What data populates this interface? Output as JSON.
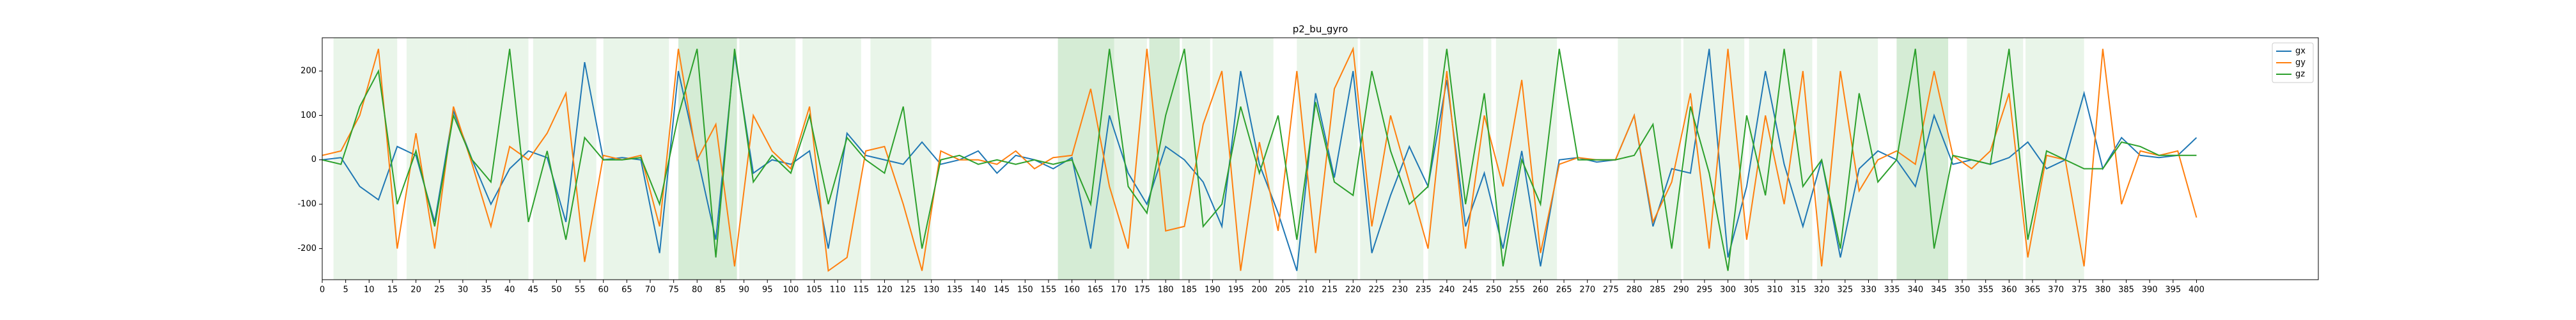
{
  "chart_data": {
    "type": "line",
    "title": "p2_bu_gyro",
    "x": [
      0,
      4,
      8,
      12,
      16,
      20,
      24,
      28,
      32,
      36,
      40,
      44,
      48,
      52,
      56,
      60,
      64,
      68,
      72,
      76,
      80,
      84,
      88,
      92,
      96,
      100,
      104,
      108,
      112,
      116,
      120,
      124,
      128,
      132,
      136,
      140,
      144,
      148,
      152,
      156,
      160,
      164,
      168,
      172,
      176,
      180,
      184,
      188,
      192,
      196,
      200,
      204,
      208,
      212,
      216,
      220,
      224,
      228,
      232,
      236,
      240,
      244,
      248,
      252,
      256,
      260,
      264,
      268,
      272,
      276,
      280,
      284,
      288,
      292,
      296,
      300,
      304,
      308,
      312,
      316,
      320,
      324,
      328,
      332,
      336,
      340,
      344,
      348,
      352,
      356,
      360,
      364,
      368,
      372,
      376,
      380,
      384,
      388,
      392,
      396,
      400
    ],
    "series": [
      {
        "name": "gx",
        "color": "#1f77b4",
        "values": [
          0,
          5,
          -60,
          -90,
          30,
          10,
          -140,
          110,
          0,
          -100,
          -20,
          20,
          5,
          -140,
          220,
          0,
          5,
          0,
          -210,
          200,
          10,
          -180,
          240,
          -30,
          0,
          -10,
          20,
          -200,
          60,
          10,
          0,
          -10,
          40,
          -10,
          0,
          20,
          -30,
          10,
          0,
          -20,
          5,
          -200,
          100,
          -30,
          -100,
          30,
          0,
          -50,
          -150,
          200,
          -10,
          -120,
          -250,
          150,
          -40,
          200,
          -210,
          -80,
          30,
          -60,
          180,
          -150,
          -30,
          -200,
          20,
          -240,
          0,
          5,
          -5,
          0,
          100,
          -150,
          -20,
          -30,
          250,
          -220,
          -60,
          200,
          -10,
          -150,
          0,
          -220,
          -20,
          20,
          0,
          -60,
          100,
          -10,
          0,
          -10,
          5,
          40,
          -20,
          0,
          150,
          -20,
          50,
          10,
          5,
          10,
          50
        ]
      },
      {
        "name": "gy",
        "color": "#ff7f0e",
        "values": [
          10,
          20,
          100,
          250,
          -200,
          60,
          -200,
          120,
          -10,
          -150,
          30,
          0,
          60,
          150,
          -230,
          10,
          0,
          10,
          -150,
          250,
          0,
          80,
          -240,
          100,
          20,
          -20,
          120,
          -250,
          -220,
          20,
          30,
          -100,
          -250,
          20,
          0,
          0,
          -10,
          20,
          -20,
          5,
          10,
          160,
          -60,
          -200,
          250,
          -160,
          -150,
          80,
          200,
          -250,
          40,
          -160,
          200,
          -210,
          160,
          250,
          -150,
          100,
          -50,
          -200,
          200,
          -200,
          100,
          -60,
          180,
          -210,
          -10,
          5,
          0,
          0,
          100,
          -140,
          -50,
          150,
          -200,
          250,
          -180,
          100,
          -100,
          200,
          -240,
          200,
          -70,
          0,
          20,
          -10,
          200,
          10,
          -20,
          20,
          150,
          -220,
          10,
          0,
          -240,
          250,
          -100,
          20,
          10,
          20,
          -130
        ]
      },
      {
        "name": "gz",
        "color": "#2ca02c",
        "values": [
          0,
          -10,
          120,
          200,
          -100,
          20,
          -150,
          100,
          0,
          -50,
          250,
          -140,
          20,
          -180,
          50,
          0,
          0,
          5,
          -100,
          100,
          250,
          -220,
          250,
          -50,
          10,
          -30,
          100,
          -100,
          50,
          0,
          -30,
          120,
          -200,
          0,
          10,
          -10,
          0,
          -10,
          0,
          -10,
          0,
          -100,
          250,
          -60,
          -120,
          100,
          250,
          -150,
          -100,
          120,
          -30,
          100,
          -180,
          130,
          -50,
          -80,
          200,
          20,
          -100,
          -60,
          250,
          -100,
          150,
          -240,
          0,
          -100,
          250,
          0,
          0,
          0,
          10,
          80,
          -200,
          120,
          -30,
          -250,
          100,
          -80,
          250,
          -60,
          0,
          -200,
          150,
          -50,
          0,
          250,
          -200,
          10,
          0,
          -10,
          250,
          -180,
          20,
          0,
          -20,
          -20,
          40,
          30,
          10,
          10,
          10
        ]
      }
    ],
    "spans": [
      [
        2.4,
        16
      ],
      [
        18,
        31
      ],
      [
        31,
        44
      ],
      [
        45,
        58.5
      ],
      [
        60,
        74
      ],
      [
        76,
        88.5
      ],
      [
        76,
        88.5
      ],
      [
        89,
        101
      ],
      [
        102.5,
        115
      ],
      [
        117,
        130
      ],
      [
        157,
        169
      ],
      [
        157,
        169
      ],
      [
        169,
        176
      ],
      [
        176.5,
        183
      ],
      [
        176.5,
        183
      ],
      [
        183.5,
        189.5
      ],
      [
        190,
        203
      ],
      [
        208,
        221
      ],
      [
        221.5,
        235
      ],
      [
        236,
        249.5
      ],
      [
        250.5,
        263.5
      ],
      [
        276.5,
        290
      ],
      [
        290.5,
        303.5
      ],
      [
        304.5,
        318
      ],
      [
        319,
        332
      ],
      [
        336,
        347
      ],
      [
        336,
        347
      ],
      [
        351,
        363
      ],
      [
        363.5,
        376
      ]
    ],
    "span_color": "#2ca02c",
    "xlim": [
      0,
      426
    ],
    "ylim": [
      -270,
      275
    ],
    "xticks": [
      0,
      5,
      10,
      15,
      20,
      25,
      30,
      35,
      40,
      45,
      50,
      55,
      60,
      65,
      70,
      75,
      80,
      85,
      90,
      95,
      100,
      105,
      110,
      115,
      120,
      125,
      130,
      135,
      140,
      145,
      150,
      155,
      160,
      165,
      170,
      175,
      180,
      185,
      190,
      195,
      200,
      205,
      210,
      215,
      220,
      225,
      230,
      235,
      240,
      245,
      250,
      255,
      260,
      265,
      270,
      275,
      280,
      285,
      290,
      295,
      300,
      305,
      310,
      315,
      320,
      325,
      330,
      335,
      340,
      345,
      350,
      355,
      360,
      365,
      370,
      375,
      380,
      385,
      390,
      395,
      400
    ],
    "yticks": [
      -200,
      -100,
      0,
      100,
      200
    ],
    "grid": false,
    "legend": "upper right"
  }
}
